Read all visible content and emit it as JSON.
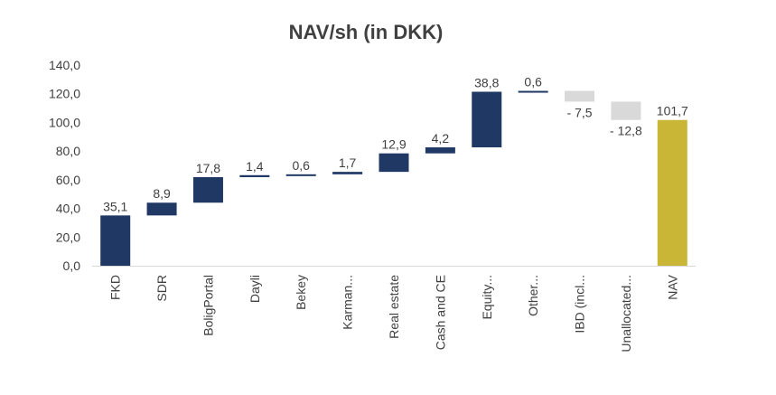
{
  "chart_data": {
    "type": "waterfall",
    "title": "NAV/sh (in DKK)",
    "xlabel": "",
    "ylabel": "",
    "ylim": [
      0,
      140
    ],
    "yticks": [
      "0,0",
      "20,0",
      "40,0",
      "60,0",
      "80,0",
      "100,0",
      "120,0",
      "140,0"
    ],
    "grid": false,
    "categories": [
      "FKD",
      "SDR",
      "BoligPortal",
      "Dayli",
      "Bekey",
      "Karman...",
      "Real estate",
      "Cash and CE",
      "Equity...",
      "Other...",
      "IBD (incl...",
      "Unallocated...",
      "NAV"
    ],
    "values": [
      35.1,
      8.9,
      17.8,
      1.4,
      0.6,
      1.7,
      12.9,
      4.2,
      38.8,
      0.6,
      -7.5,
      -12.8,
      101.7
    ],
    "data_labels": [
      "35,1",
      "8,9",
      "17,8",
      "1,4",
      "0,6",
      "1,7",
      "12,9",
      "4,2",
      "38,8",
      "0,6",
      "- 7,5",
      "- 12,8",
      "101,7"
    ],
    "colors": {
      "increase": "#1f3864",
      "decrease": "#d9d9d9",
      "total": "#c9b637",
      "axis": "#d9d9d9",
      "text": "#404040"
    }
  }
}
